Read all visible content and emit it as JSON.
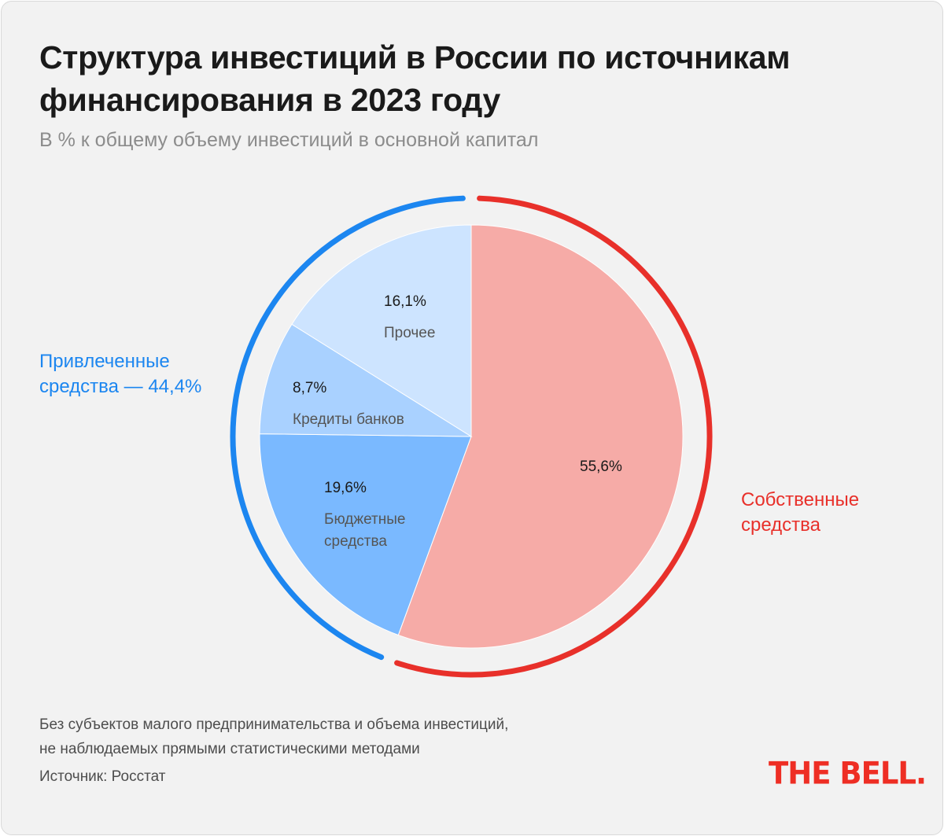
{
  "title": "Структура инвестиций в России по источникам финансирования в 2023 году",
  "subtitle": "В % к общему объему инвестиций в основной капитал",
  "colors": {
    "own": "#f6aba7",
    "budget": "#7ab9ff",
    "banks": "#a9d1ff",
    "other": "#cde4ff",
    "own_ring": "#e8302a",
    "attracted_ring": "#1c86f0"
  },
  "chart_data": {
    "type": "pie",
    "unit": "%",
    "slices": [
      {
        "key": "own",
        "value": 55.6,
        "value_label": "55,6%",
        "name": "",
        "color": "#f6aba7",
        "group": "own"
      },
      {
        "key": "budget",
        "value": 19.6,
        "value_label": "19,6%",
        "name": "Бюджетные средства",
        "color": "#7ab9ff",
        "group": "attracted"
      },
      {
        "key": "banks",
        "value": 8.7,
        "value_label": "8,7%",
        "name": "Кредиты банков",
        "color": "#a9d1ff",
        "group": "attracted"
      },
      {
        "key": "other",
        "value": 16.1,
        "value_label": "16,1%",
        "name": "Прочее",
        "color": "#cde4ff",
        "group": "attracted"
      }
    ],
    "groups": [
      {
        "key": "own",
        "label": "Собственные средства",
        "total": 55.6,
        "color": "#e8302a"
      },
      {
        "key": "attracted",
        "label": "Привлеченные средства — 44,4%",
        "total": 44.4,
        "color": "#1c86f0"
      }
    ]
  },
  "footnote": {
    "line1": "Без субъектов малого предпринимательства и объема инвестиций,",
    "line2": "не наблюдаемых прямыми статистическими методами"
  },
  "source": "Источник: Росстат",
  "logo": "THE BELL."
}
